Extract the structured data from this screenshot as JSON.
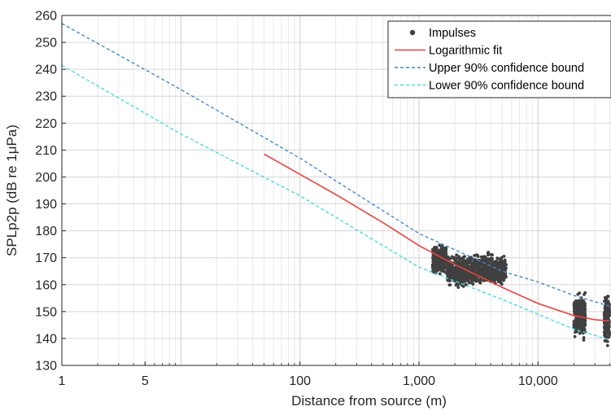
{
  "chart_data": {
    "type": "scatter",
    "xscale": "log",
    "xlim": [
      1,
      40000
    ],
    "ylim": [
      130,
      260
    ],
    "xlabel": "Distance from source (m)",
    "ylabel": "SPLp2p (dB re 1μPa)",
    "x_ticks": [
      {
        "value": 1,
        "label": "1"
      },
      {
        "value": 5,
        "label": "5"
      },
      {
        "value": 100,
        "label": "100"
      },
      {
        "value": 1000,
        "label": "1,000"
      },
      {
        "value": 10000,
        "label": "10,000"
      }
    ],
    "y_ticks": [
      130,
      140,
      150,
      160,
      170,
      180,
      190,
      200,
      210,
      220,
      230,
      240,
      250,
      260
    ],
    "grid": true,
    "legend_position": "top-right",
    "colors": {
      "impulses": "#404040",
      "fit": "#e8423f",
      "upper": "#3d8ad0",
      "lower": "#42d9e6"
    },
    "series": [
      {
        "name": "Impulses",
        "kind": "scatter",
        "clusters": [
          {
            "x": [
              1300,
              1700
            ],
            "y": [
              163,
              176
            ]
          },
          {
            "x": [
              1700,
              2600
            ],
            "y": [
              158,
              172
            ]
          },
          {
            "x": [
              2600,
              5400
            ],
            "y": [
              158,
              173
            ]
          },
          {
            "x": [
              20000,
              25000
            ],
            "y": [
              138,
              159
            ]
          },
          {
            "x": [
              36000,
              40000
            ],
            "y": [
              136,
              158
            ]
          }
        ]
      },
      {
        "name": "Logarithmic fit",
        "kind": "line",
        "style": "solid",
        "x": [
          50,
          100,
          200,
          500,
          1000,
          2000,
          5000,
          10000,
          20000,
          30000,
          40000
        ],
        "y": [
          208.5,
          201,
          193.5,
          183,
          174.5,
          167.5,
          159,
          153,
          148.5,
          147,
          146.5
        ]
      },
      {
        "name": "Upper 90% confidence bound",
        "kind": "line",
        "style": "dashed",
        "x": [
          1,
          10,
          100,
          1000,
          5000,
          10000,
          20000,
          40000
        ],
        "y": [
          257,
          232.5,
          207,
          179,
          165,
          161,
          156,
          152
        ]
      },
      {
        "name": "Lower 90% confidence bound",
        "kind": "line",
        "style": "dashed",
        "x": [
          1,
          10,
          100,
          1000,
          5000,
          10000,
          20000,
          40000
        ],
        "y": [
          241.5,
          216,
          193,
          166.5,
          154.5,
          149,
          143.5,
          139.5
        ]
      }
    ]
  }
}
